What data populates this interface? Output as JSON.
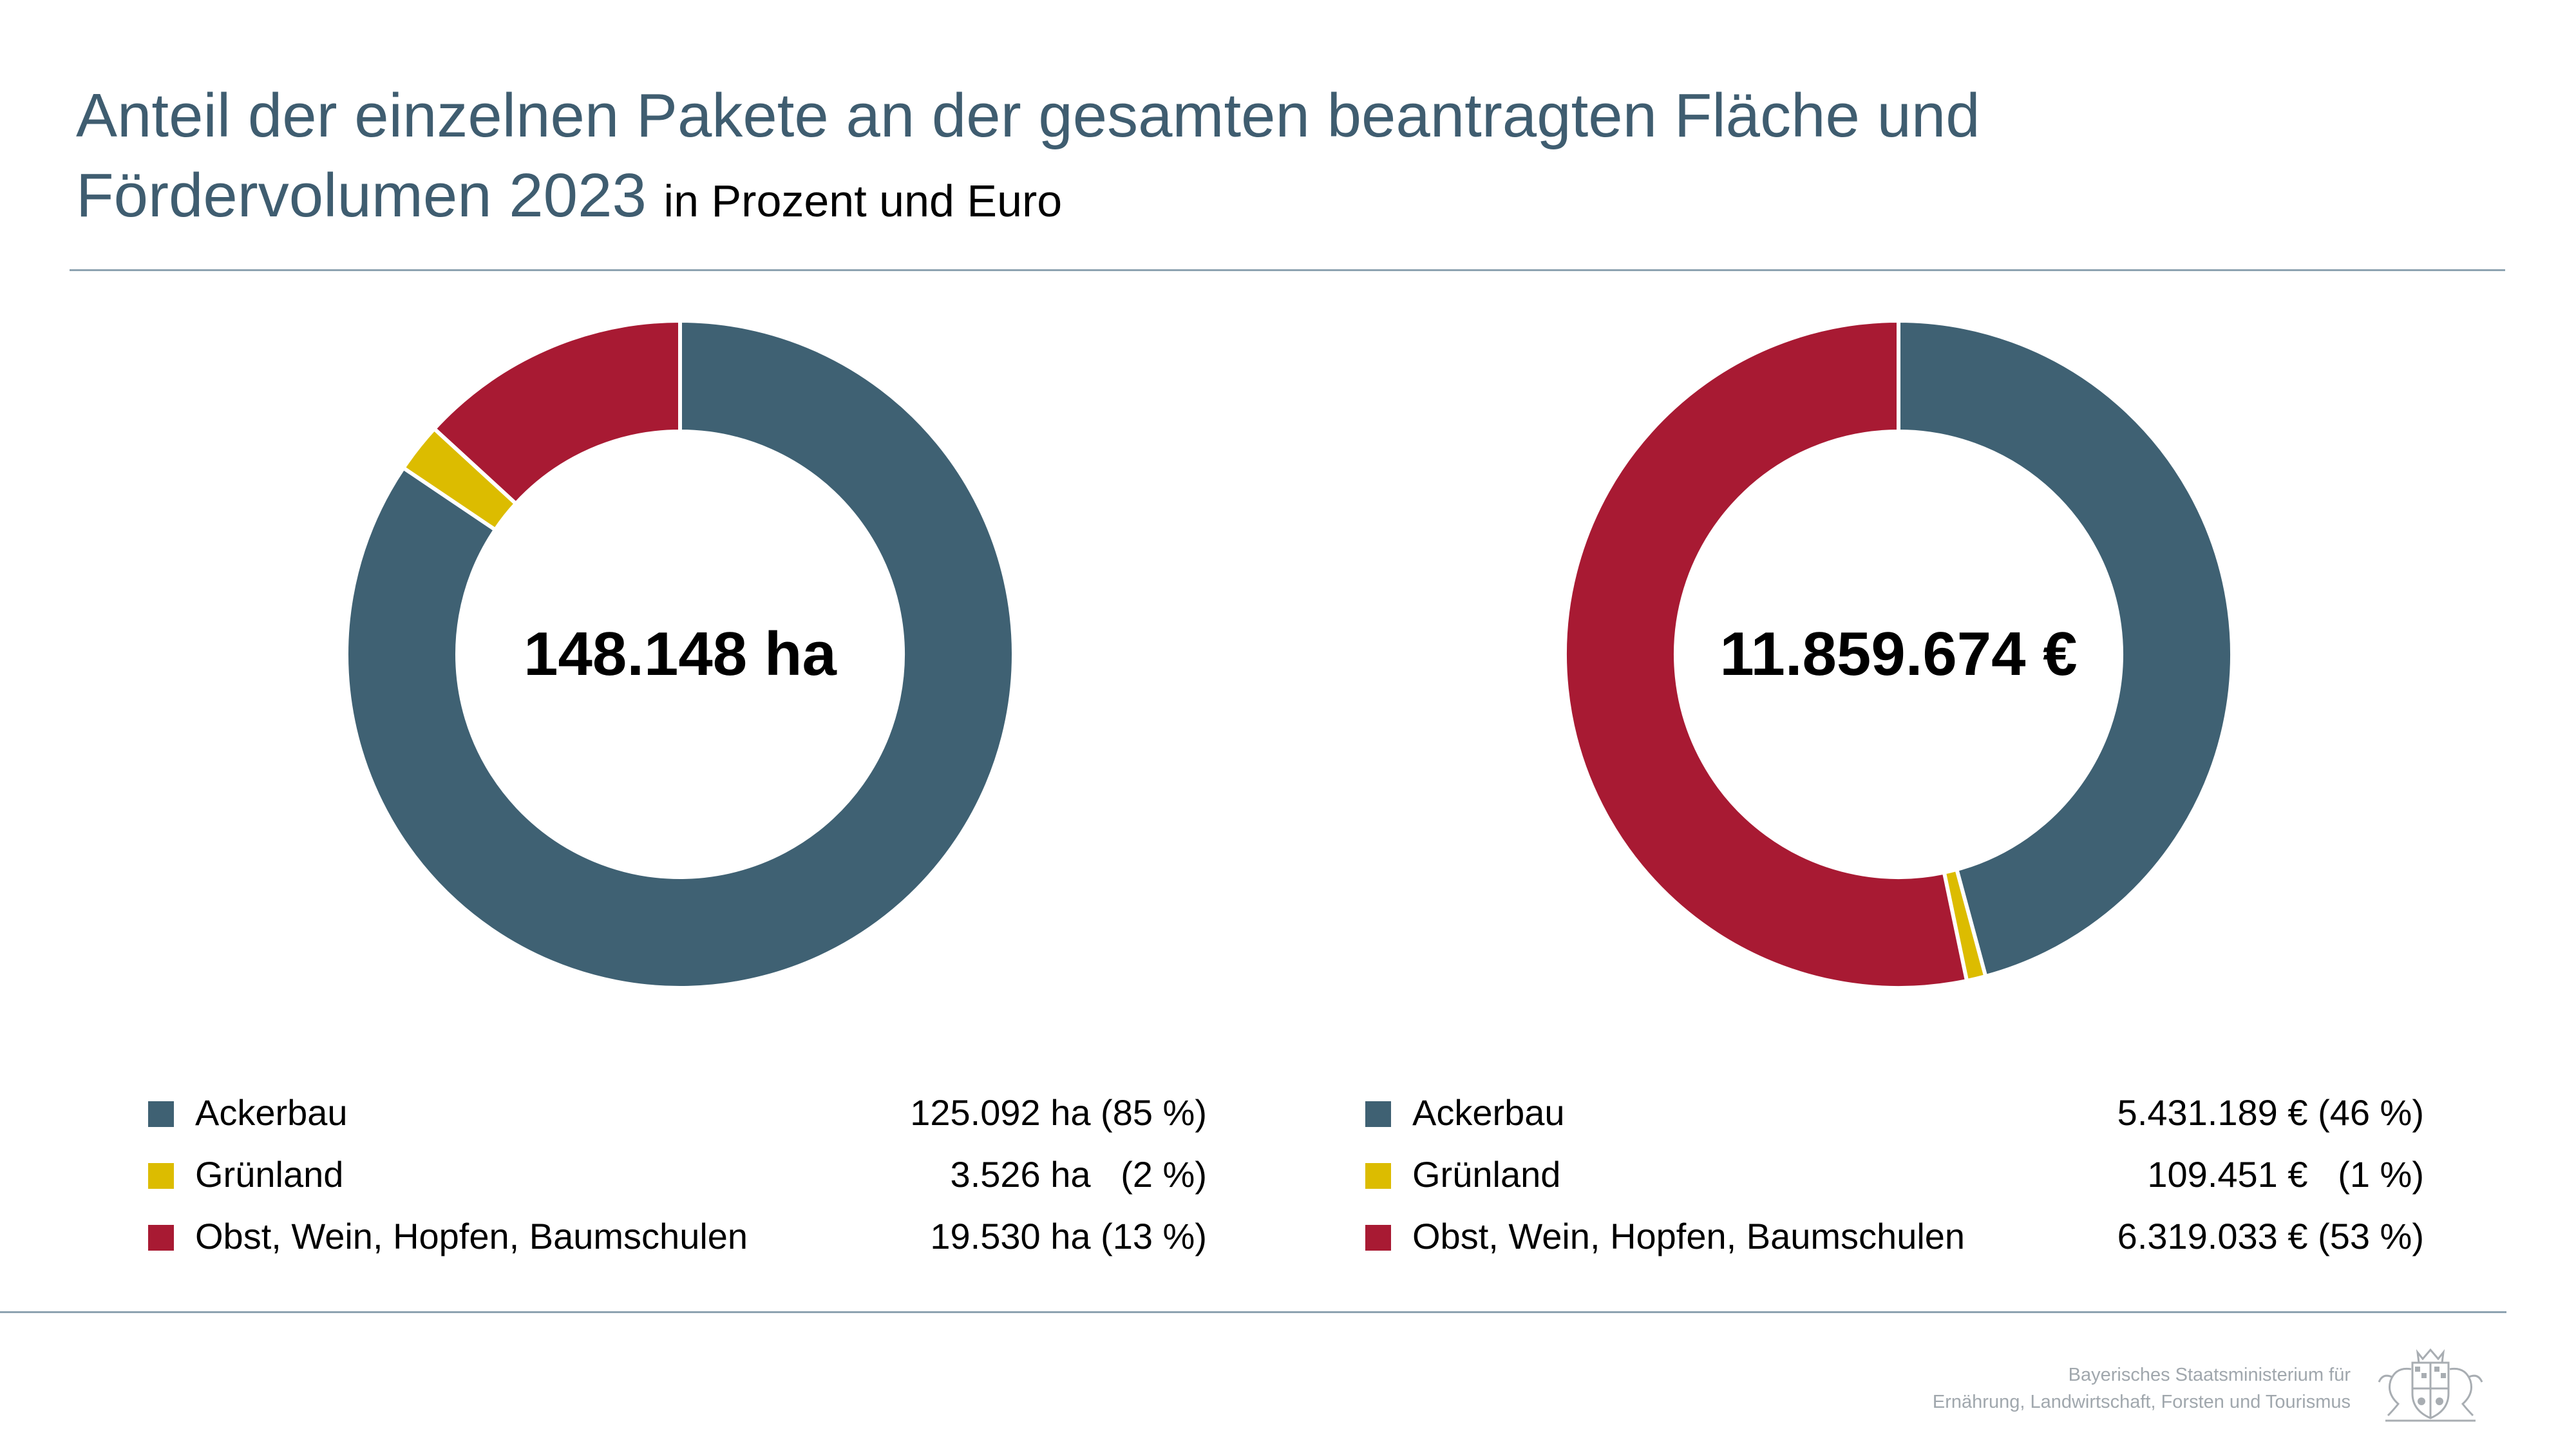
{
  "title": {
    "main_line1": "Anteil der einzelnen Pakete an der gesamten beantragten Fläche und",
    "main_line2": "Fördervolumen 2023",
    "subtitle": "in Prozent und Euro"
  },
  "colors": {
    "accent": "#3f5d70",
    "ackerbau": "#3f6173",
    "gruenland": "#dcbc00",
    "obst": "#a81a33"
  },
  "chart_data": [
    {
      "type": "pie",
      "subtype": "donut",
      "center_label": "148.148 ha",
      "unit": "ha",
      "categories": [
        "Ackerbau",
        "Grünland",
        "Obst, Wein, Hopfen, Baumschulen"
      ],
      "values": [
        125092,
        3526,
        19530
      ],
      "percent": [
        85,
        2,
        13
      ],
      "colors": [
        "#3f6173",
        "#dcbc00",
        "#a81a33"
      ],
      "legend_values": [
        "125.092 ha (85 %)",
        "3.526 ha   (2 %)",
        "19.530 ha (13 %)"
      ],
      "start_angle": "top",
      "direction": "clockwise"
    },
    {
      "type": "pie",
      "subtype": "donut",
      "center_label": "11.859.674 €",
      "unit": "€",
      "categories": [
        "Ackerbau",
        "Grünland",
        "Obst, Wein, Hopfen, Baumschulen"
      ],
      "values": [
        5431189,
        109451,
        6319033
      ],
      "percent": [
        46,
        1,
        53
      ],
      "colors": [
        "#3f6173",
        "#dcbc00",
        "#a81a33"
      ],
      "legend_values": [
        "5.431.189 € (46 %)",
        "109.451 €   (1 %)",
        "6.319.033 € (53 %)"
      ],
      "start_angle": "top",
      "direction": "clockwise"
    }
  ],
  "footer": {
    "line1": "Bayerisches Staatsministerium für",
    "line2": "Ernährung, Landwirtschaft, Forsten und Tourismus",
    "emblem_icon": "bavarian-coat-of-arms"
  }
}
